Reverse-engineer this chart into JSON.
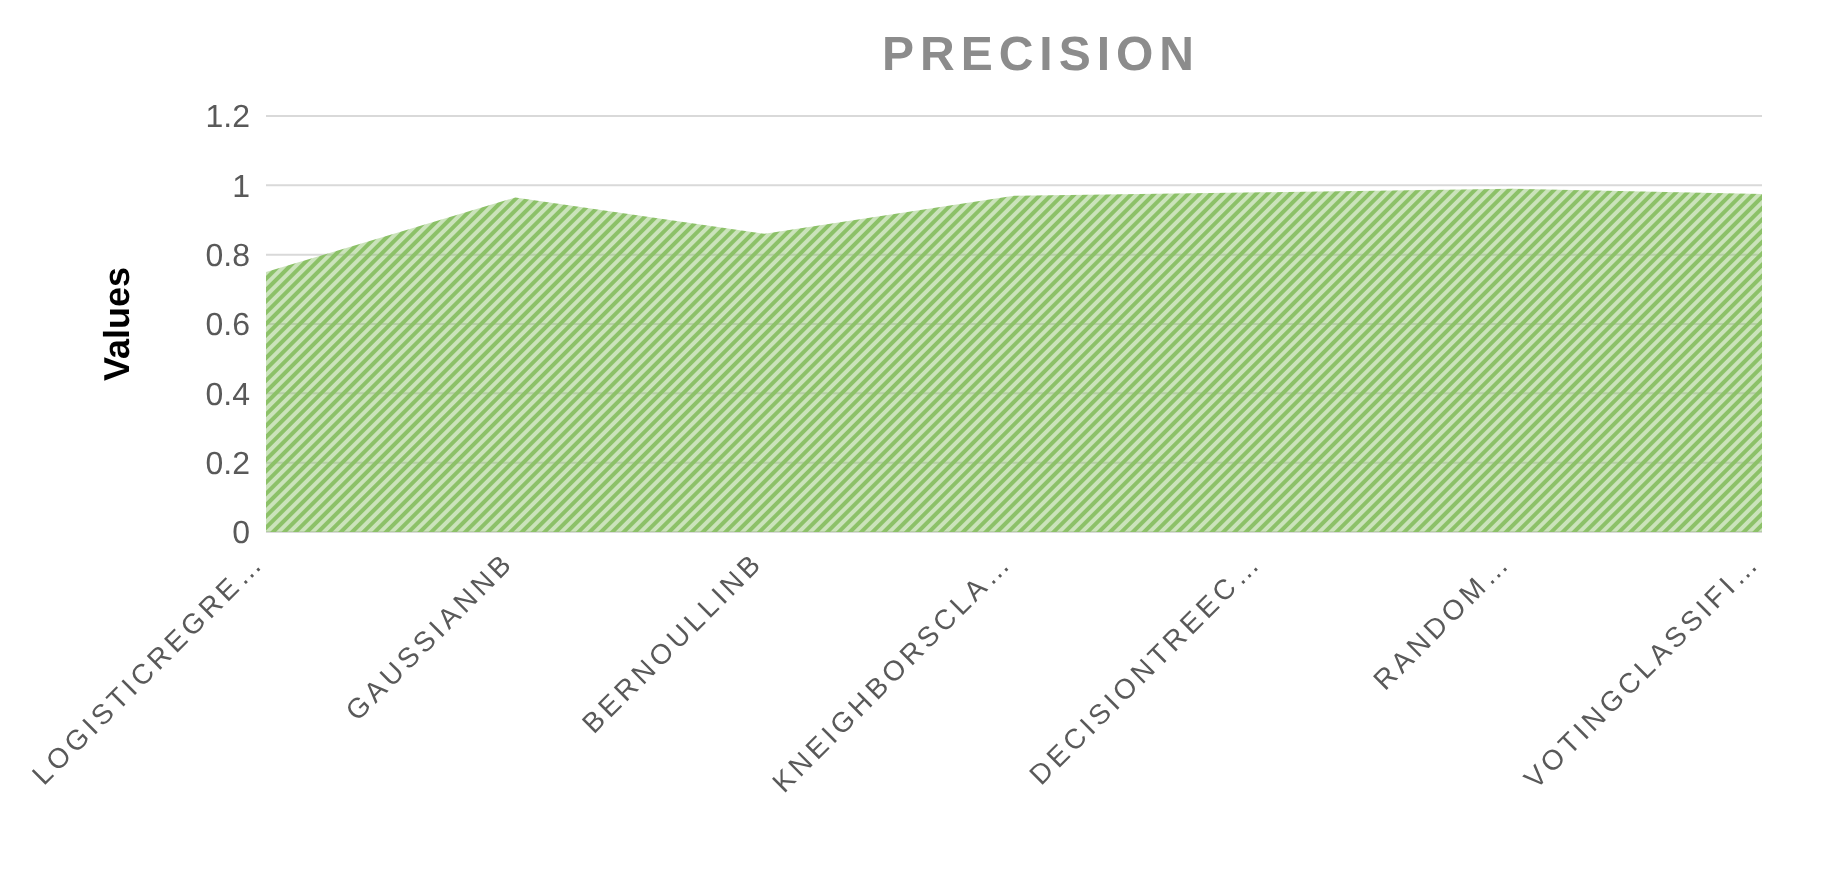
{
  "chart_data": {
    "type": "area",
    "title": "PRECISION",
    "ylabel": "Values",
    "categories": [
      "LOGISTICREGRE…",
      "GAUSSIANNB",
      "BERNOULLINB",
      "KNEIGHBORSCLA…",
      "DECISIONTREEC…",
      "RANDOM…",
      "VOTINGCLASSIFI…"
    ],
    "series": [
      {
        "color": "#8cc168",
        "values": [
          0.75,
          0.965,
          0.86,
          0.97,
          0.98,
          0.99,
          0.975
        ]
      }
    ],
    "ylim": [
      0,
      1.2
    ],
    "yticks": [
      0,
      0.2,
      0.4,
      0.6,
      0.8,
      1,
      1.2
    ],
    "grid": "y",
    "legend": false
  }
}
